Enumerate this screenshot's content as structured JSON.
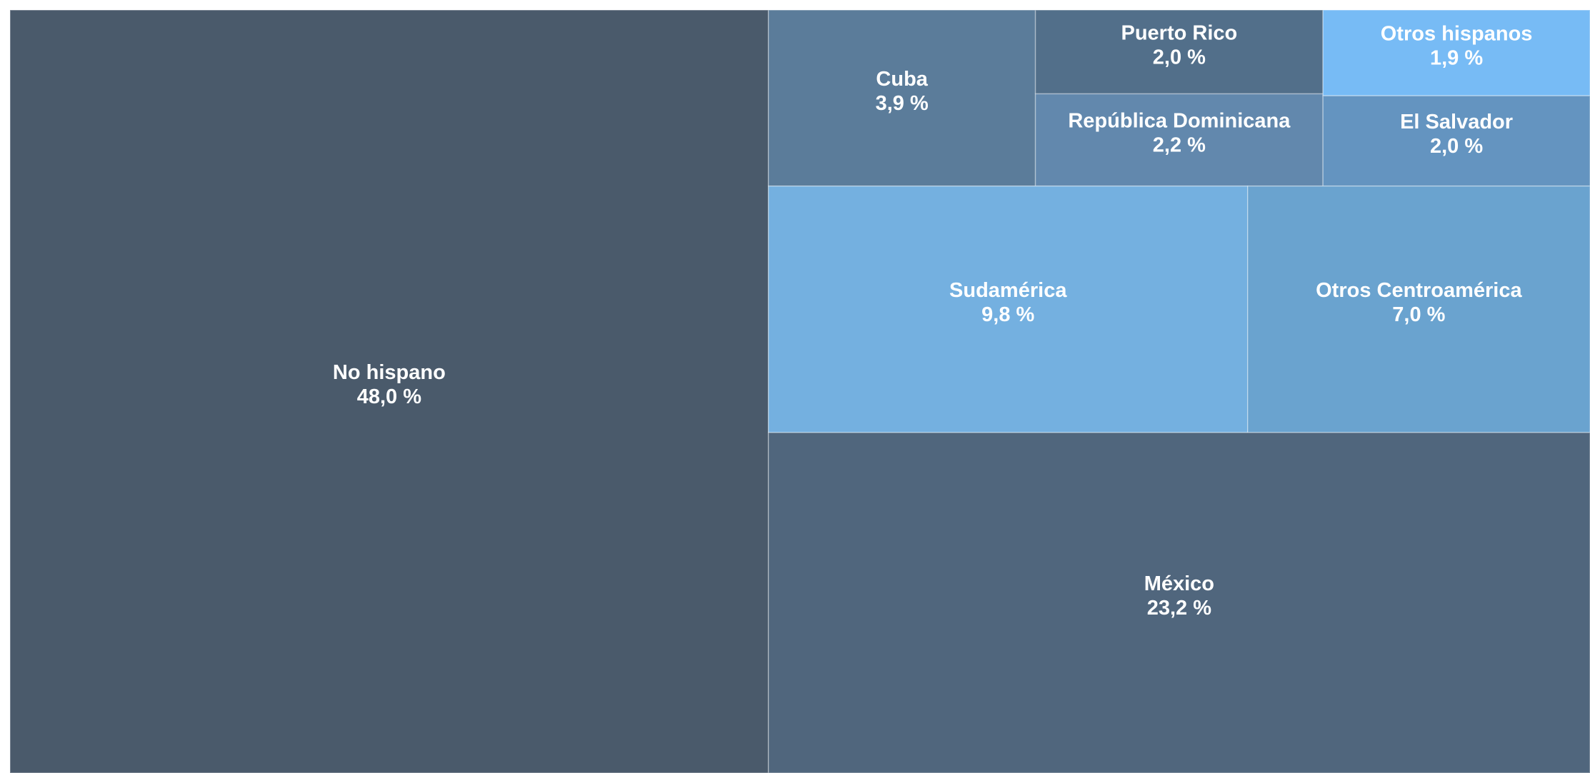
{
  "chart_data": {
    "type": "treemap",
    "labels": [
      "No hispano",
      "México",
      "Sudamérica",
      "Otros Centroamérica",
      "Cuba",
      "República Dominicana",
      "Puerto Rico",
      "El Salvador",
      "Otros hispanos"
    ],
    "values": [
      48.0,
      23.2,
      9.8,
      7.0,
      3.9,
      2.2,
      2.0,
      2.0,
      1.9
    ],
    "value_labels": [
      "48,0 %",
      "23,2 %",
      "9,8 %",
      "7,0 %",
      "3,9 %",
      "2,2 %",
      "2,0 %",
      "2,0 %",
      "1,9 %"
    ],
    "colors": [
      "#4a5a6b",
      "#50667d",
      "#74b0e0",
      "#6aa3cf",
      "#5b7c9a",
      "#6288ad",
      "#526f8a",
      "#6494c0",
      "#77bbf5"
    ]
  }
}
